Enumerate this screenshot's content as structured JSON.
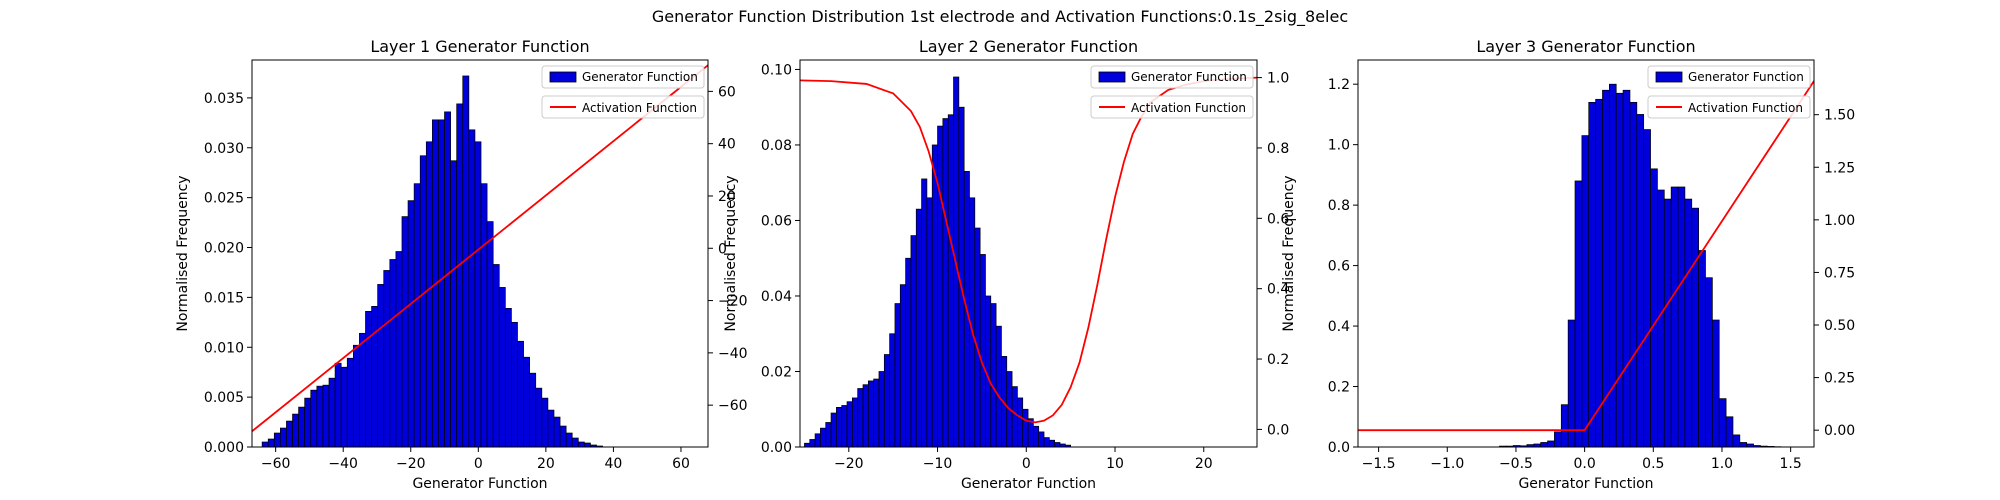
{
  "figure": {
    "title": "Generator Function Distribution 1st electrode and Activation Functions:0.1s_2sig_8elec"
  },
  "colors": {
    "bar_fill": "#0000dd",
    "bar_edge": "#000000",
    "line": "#ff0000"
  },
  "chart_data": [
    {
      "type": "bar",
      "title": "Layer 1 Generator Function",
      "xlabel": "Generator Function",
      "ylabel": "Normalised Frequency",
      "xlim": [
        -67,
        68
      ],
      "ylim": [
        0,
        0.0388
      ],
      "y2lim": [
        -76,
        72
      ],
      "xticks": [
        -60,
        -40,
        -20,
        0,
        20,
        40,
        60
      ],
      "yticks": [
        0.0,
        0.005,
        0.01,
        0.015,
        0.02,
        0.025,
        0.03,
        0.035
      ],
      "yticklabels": [
        "0.000",
        "0.005",
        "0.010",
        "0.015",
        "0.020",
        "0.025",
        "0.030",
        "0.035"
      ],
      "y2ticks": [
        -60,
        -40,
        -20,
        0,
        20,
        40,
        60
      ],
      "y2ticklabels": [
        "−60",
        "−40",
        "−20",
        "0",
        "20",
        "40",
        "60"
      ],
      "hist": {
        "bin_start": -64,
        "bin_width": 1.8,
        "values": [
          0.0005,
          0.0008,
          0.0014,
          0.0019,
          0.0026,
          0.0033,
          0.004,
          0.0049,
          0.0057,
          0.0061,
          0.0062,
          0.0069,
          0.0084,
          0.008,
          0.0089,
          0.0102,
          0.0114,
          0.0136,
          0.0141,
          0.0163,
          0.0177,
          0.0188,
          0.0196,
          0.0231,
          0.0247,
          0.0264,
          0.0292,
          0.0306,
          0.0328,
          0.0328,
          0.0336,
          0.0287,
          0.0344,
          0.0372,
          0.0318,
          0.0306,
          0.0264,
          0.0226,
          0.0183,
          0.016,
          0.0139,
          0.0125,
          0.0106,
          0.009,
          0.0074,
          0.0059,
          0.0049,
          0.0037,
          0.003,
          0.0021,
          0.0014,
          0.0009,
          0.0005,
          0.0004,
          0.0002,
          0.0001
        ]
      },
      "activation": {
        "x": [
          -67,
          68
        ],
        "y": [
          -70,
          70
        ]
      },
      "legend": [
        "Generator Function",
        "Activation Function"
      ],
      "legend_position": "top-right"
    },
    {
      "type": "bar",
      "title": "Layer 2 Generator Function",
      "xlabel": "Generator Function",
      "ylabel": "Normalised Frequency",
      "xlim": [
        -25.5,
        26
      ],
      "ylim": [
        0,
        0.1025
      ],
      "y2lim": [
        -0.05,
        1.05
      ],
      "xticks": [
        -20,
        -10,
        0,
        10,
        20
      ],
      "yticks": [
        0.0,
        0.02,
        0.04,
        0.06,
        0.08,
        0.1
      ],
      "yticklabels": [
        "0.00",
        "0.02",
        "0.04",
        "0.06",
        "0.08",
        "0.10"
      ],
      "y2ticks": [
        0.0,
        0.2,
        0.4,
        0.6,
        0.8,
        1.0
      ],
      "y2ticklabels": [
        "0.0",
        "0.2",
        "0.4",
        "0.6",
        "0.8",
        "1.0"
      ],
      "hist": {
        "bin_start": -25,
        "bin_width": 0.6,
        "values": [
          0.001,
          0.002,
          0.0035,
          0.005,
          0.0065,
          0.009,
          0.0105,
          0.011,
          0.012,
          0.013,
          0.0155,
          0.0165,
          0.0175,
          0.018,
          0.02,
          0.0245,
          0.03,
          0.038,
          0.043,
          0.05,
          0.056,
          0.063,
          0.071,
          0.066,
          0.08,
          0.085,
          0.087,
          0.088,
          0.098,
          0.09,
          0.073,
          0.066,
          0.058,
          0.051,
          0.04,
          0.038,
          0.032,
          0.024,
          0.02,
          0.016,
          0.013,
          0.01,
          0.0075,
          0.0055,
          0.004,
          0.0025,
          0.0018,
          0.0012,
          0.0008,
          0.0005
        ]
      },
      "activation": {
        "x": [
          -25.5,
          -22,
          -18,
          -15,
          -13,
          -12,
          -11,
          -10,
          -9,
          -8,
          -7,
          -6,
          -5,
          -4,
          -3,
          -2,
          -1,
          0,
          1,
          2,
          3,
          4,
          5,
          6,
          7,
          8,
          9,
          10,
          11,
          12,
          13,
          14,
          16,
          18,
          20,
          22,
          26
        ],
        "y": [
          0.992,
          0.99,
          0.982,
          0.955,
          0.905,
          0.86,
          0.79,
          0.7,
          0.59,
          0.48,
          0.37,
          0.27,
          0.19,
          0.13,
          0.09,
          0.06,
          0.04,
          0.025,
          0.02,
          0.025,
          0.04,
          0.07,
          0.12,
          0.19,
          0.29,
          0.41,
          0.54,
          0.66,
          0.76,
          0.84,
          0.89,
          0.93,
          0.965,
          0.98,
          0.99,
          0.995,
          1.0
        ]
      },
      "legend": [
        "Generator Function",
        "Activation Function"
      ],
      "legend_position": "top-right"
    },
    {
      "type": "bar",
      "title": "Layer 3 Generator Function",
      "xlabel": "Generator Function",
      "ylabel": "Normalised Frequency",
      "xlim": [
        -1.65,
        1.67
      ],
      "ylim": [
        0,
        1.28
      ],
      "y2lim": [
        -0.08,
        1.76
      ],
      "xticks": [
        -1.5,
        -1.0,
        -0.5,
        0.0,
        0.5,
        1.0,
        1.5
      ],
      "xticklabels": [
        "−1.5",
        "−1.0",
        "−0.5",
        "0.0",
        "0.5",
        "1.0",
        "1.5"
      ],
      "yticks": [
        0.0,
        0.2,
        0.4,
        0.6,
        0.8,
        1.0,
        1.2
      ],
      "yticklabels": [
        "0.0",
        "0.2",
        "0.4",
        "0.6",
        "0.8",
        "1.0",
        "1.2"
      ],
      "y2ticks": [
        0.0,
        0.25,
        0.5,
        0.75,
        1.0,
        1.25,
        1.5
      ],
      "y2ticklabels": [
        "0.00",
        "0.25",
        "0.50",
        "0.75",
        "1.00",
        "1.25",
        "1.50"
      ],
      "hist": {
        "bin_start": -0.62,
        "bin_width": 0.05,
        "values": [
          0.003,
          0.003,
          0.005,
          0.004,
          0.008,
          0.01,
          0.015,
          0.02,
          0.05,
          0.14,
          0.42,
          0.88,
          1.03,
          1.14,
          1.15,
          1.18,
          1.2,
          1.17,
          1.18,
          1.14,
          1.1,
          1.05,
          0.92,
          0.85,
          0.82,
          0.86,
          0.86,
          0.82,
          0.79,
          0.65,
          0.56,
          0.42,
          0.16,
          0.1,
          0.04,
          0.015,
          0.01,
          0.005,
          0.003,
          0.002,
          0.001
        ]
      },
      "activation": {
        "x": [
          -1.65,
          0.0,
          1.67
        ],
        "y": [
          0.0,
          0.0,
          1.66
        ]
      },
      "legend": [
        "Generator Function",
        "Activation Function"
      ],
      "legend_position": "top-right"
    }
  ]
}
